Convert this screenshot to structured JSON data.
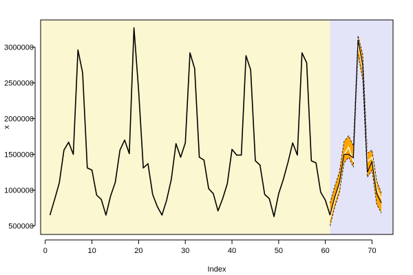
{
  "chart_data": {
    "type": "line",
    "title": "",
    "xlabel": "Index",
    "ylabel": "x",
    "xlim": [
      -1,
      74.5
    ],
    "ylim": [
      380000,
      3380000
    ],
    "x_ticks": [
      0,
      10,
      20,
      30,
      40,
      50,
      60,
      70
    ],
    "y_ticks": [
      500000,
      1000000,
      1500000,
      2000000,
      2500000,
      3000000
    ],
    "y_tick_labels": [
      "500000",
      "1000000",
      "1500000",
      "2000000",
      "2500000",
      "3000000"
    ],
    "grid": false,
    "legend": "none",
    "regions": [
      {
        "name": "observed",
        "x_range": [
          -1,
          61
        ],
        "color": "#FBF7D0"
      },
      {
        "name": "forecast",
        "x_range": [
          61,
          74.5
        ],
        "color": "#E4E4F8"
      }
    ],
    "series": [
      {
        "role": "observed",
        "color": "#000000",
        "x": [
          1,
          2,
          3,
          4,
          5,
          6,
          7,
          8,
          9,
          10,
          11,
          12,
          13,
          14,
          15,
          16,
          17,
          18,
          19,
          20,
          21,
          22,
          23,
          24,
          25,
          26,
          27,
          28,
          29,
          30,
          31,
          32,
          33,
          34,
          35,
          36,
          37,
          38,
          39,
          40,
          41,
          42,
          43,
          44,
          45,
          46,
          47,
          48,
          49,
          50,
          51,
          52,
          53,
          54,
          55,
          56,
          57,
          58,
          59,
          60,
          61
        ],
        "values": [
          650000,
          870000,
          1100000,
          1560000,
          1670000,
          1500000,
          2960000,
          2640000,
          1310000,
          1280000,
          930000,
          870000,
          650000,
          920000,
          1110000,
          1560000,
          1700000,
          1510000,
          3270000,
          2390000,
          1310000,
          1370000,
          940000,
          770000,
          650000,
          860000,
          1150000,
          1650000,
          1460000,
          1660000,
          2920000,
          2700000,
          1460000,
          1420000,
          1020000,
          950000,
          710000,
          880000,
          1090000,
          1570000,
          1490000,
          1490000,
          2880000,
          2680000,
          1410000,
          1350000,
          940000,
          880000,
          630000,
          950000,
          1150000,
          1390000,
          1660000,
          1490000,
          2920000,
          2780000,
          1410000,
          1380000,
          970000,
          860000,
          650000
        ]
      },
      {
        "role": "forecast",
        "color": "#000000",
        "x": [
          61,
          62,
          63,
          64,
          65,
          66,
          67,
          68,
          69,
          70,
          71,
          72
        ],
        "values": [
          650000,
          900000,
          1100000,
          1500000,
          1500000,
          1450000,
          3100000,
          2750000,
          1250000,
          1400000,
          950000,
          820000
        ]
      },
      {
        "role": "forecast-upper",
        "color": "#FFA500",
        "x": [
          61,
          62,
          63,
          64,
          65,
          66,
          67,
          68,
          69,
          70,
          71,
          72
        ],
        "values": [
          820000,
          1050000,
          1250000,
          1680000,
          1760000,
          1620000,
          3160000,
          2900000,
          1520000,
          1560000,
          1130000,
          960000
        ]
      },
      {
        "role": "forecast-lower",
        "color": "#FFA500",
        "x": [
          61,
          62,
          63,
          64,
          65,
          66,
          67,
          68,
          69,
          70,
          71,
          72
        ],
        "values": [
          500000,
          760000,
          960000,
          1380000,
          1460000,
          1320000,
          2900000,
          2550000,
          1180000,
          1280000,
          800000,
          680000
        ]
      },
      {
        "role": "forecast-actual",
        "color": "#FFFFFF",
        "x": [
          61,
          62,
          63,
          64,
          65,
          66,
          67,
          68,
          69,
          70,
          71,
          72
        ],
        "values": [
          600000,
          850000,
          1050000,
          1500000,
          1600000,
          1400000,
          3050000,
          2700000,
          1400000,
          1460000,
          1020000,
          880000
        ]
      }
    ]
  }
}
